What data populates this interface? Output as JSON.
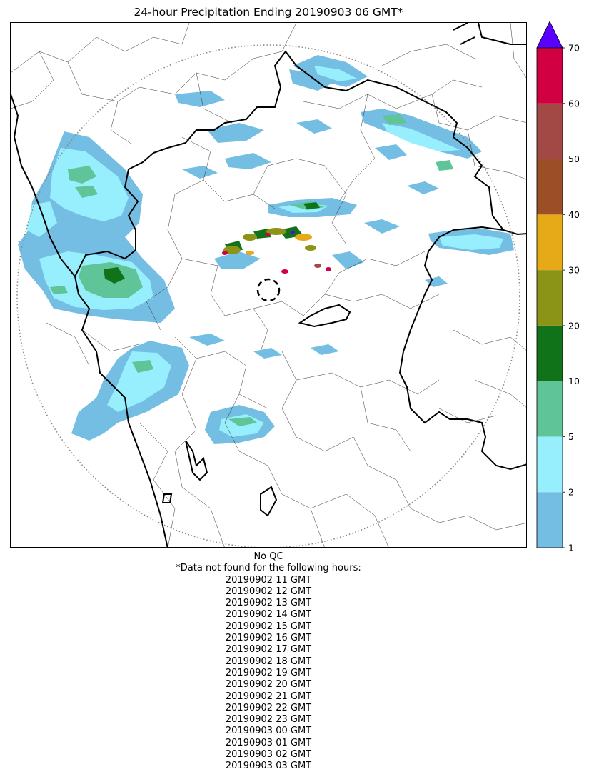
{
  "title": "24-hour Precipitation Ending 20190903 06 GMT*",
  "map": {
    "basemap": "state and district boundaries, coastline",
    "radar_range_ring": "dotted circle",
    "radar_site_marker": "dashed circle"
  },
  "colorbar": {
    "ticks": [
      "1",
      "2",
      "5",
      "10",
      "20",
      "30",
      "40",
      "50",
      "60",
      "70"
    ],
    "colors": [
      "#74bde3",
      "#97eefc",
      "#5fc498",
      "#10731a",
      "#8c9418",
      "#e6aa18",
      "#9c4f27",
      "#a24945",
      "#d10042"
    ],
    "extend_color": "#5a00ff"
  },
  "notes": {
    "qc": "No QC",
    "missing_header": "*Data not found for the following hours:",
    "missing_hours": [
      "20190902 11 GMT",
      "20190902 12 GMT",
      "20190902 13 GMT",
      "20190902 14 GMT",
      "20190902 15 GMT",
      "20190902 16 GMT",
      "20190902 17 GMT",
      "20190902 18 GMT",
      "20190902 19 GMT",
      "20190902 20 GMT",
      "20190902 21 GMT",
      "20190902 22 GMT",
      "20190902 23 GMT",
      "20190903 00 GMT",
      "20190903 01 GMT",
      "20190903 02 GMT",
      "20190903 03 GMT"
    ]
  }
}
